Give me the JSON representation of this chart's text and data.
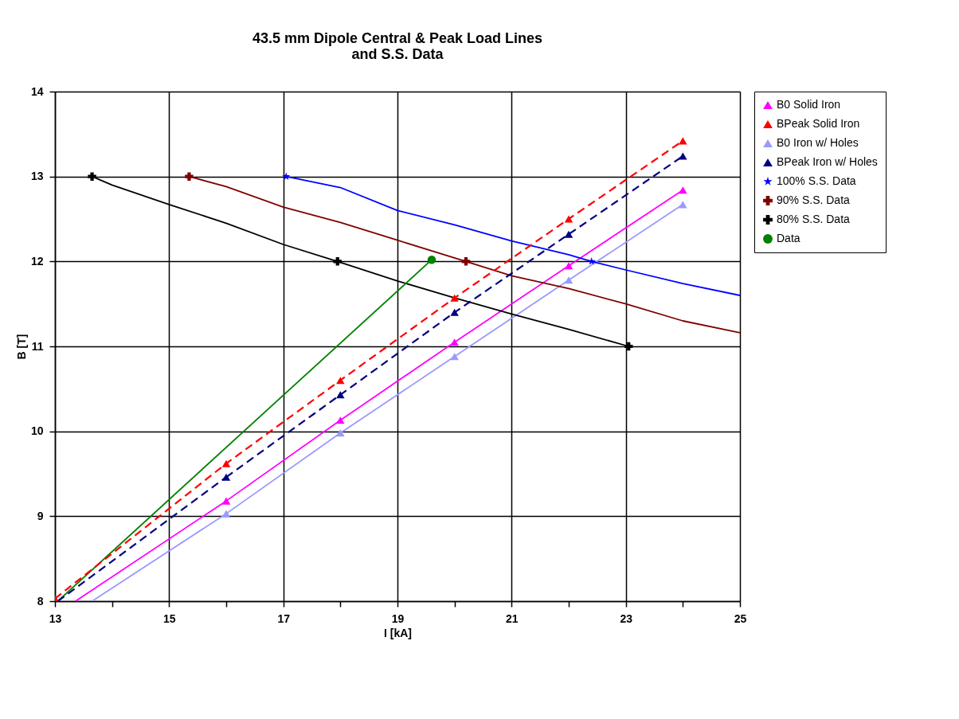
{
  "chart_data": {
    "type": "line",
    "title": "43.5 mm Dipole Central & Peak Load Lines\nand S.S. Data",
    "xlabel": "I [kA]",
    "ylabel": "B [T]",
    "xlim": [
      13,
      25
    ],
    "ylim": [
      8,
      14
    ],
    "xticks": [
      13,
      {
        "value": 14,
        "label": null
      },
      15,
      {
        "value": 16,
        "label": null
      },
      17,
      {
        "value": 18,
        "label": null
      },
      19,
      {
        "value": 20,
        "label": null
      },
      21,
      {
        "value": 22,
        "label": null
      },
      23,
      {
        "value": 24,
        "label": null
      },
      25
    ],
    "yticks": [
      8,
      9,
      10,
      11,
      12,
      13,
      14
    ],
    "grid": true,
    "legend": "right",
    "series": [
      {
        "name": "B0 Solid Iron",
        "color": "#ff00ff",
        "marker": "triangle",
        "line_style": "solid",
        "x": [
          16,
          18,
          20,
          22,
          24
        ],
        "values": [
          9.18,
          10.13,
          11.05,
          11.95,
          12.84
        ]
      },
      {
        "name": "BPeak Solid Iron",
        "color": "#ff0000",
        "marker": "triangle",
        "line_style": "dashed",
        "x": [
          13,
          16,
          18,
          20,
          22,
          24
        ],
        "values": [
          8.03,
          9.62,
          10.6,
          11.57,
          12.5,
          13.42
        ]
      },
      {
        "name": "B0 Iron w/ Holes",
        "color": "#9999ff",
        "marker": "triangle",
        "line_style": "solid",
        "x": [
          16,
          18,
          20,
          22,
          24
        ],
        "values": [
          9.03,
          9.98,
          10.88,
          11.78,
          12.67
        ]
      },
      {
        "name": "BPeak Iron w/ Holes",
        "color": "#000080",
        "marker": "triangle",
        "line_style": "dashed",
        "x": [
          16,
          18,
          20,
          22,
          24
        ],
        "values": [
          9.46,
          10.43,
          11.4,
          12.32,
          13.24
        ]
      },
      {
        "name": "100% S.S. Data",
        "type": "scatter",
        "color": "#0000ff",
        "marker": "star",
        "x": [
          17.05,
          22.4
        ],
        "values": [
          13.0,
          12.0
        ]
      },
      {
        "name": "90% S.S. Data",
        "type": "scatter",
        "color": "#800000",
        "marker": "cross",
        "x": [
          15.35,
          20.2
        ],
        "values": [
          13.0,
          12.0
        ]
      },
      {
        "name": "80% S.S. Data",
        "type": "scatter",
        "color": "#000000",
        "marker": "cross",
        "x": [
          13.65,
          17.95,
          23.05
        ],
        "values": [
          13.0,
          12.0,
          11.0
        ]
      },
      {
        "name": "Data",
        "type": "scatter",
        "color": "#008000",
        "marker": "circle",
        "x": [
          19.6
        ],
        "values": [
          12.02
        ]
      },
      {
        "color": "#ff00ff",
        "marker": "none",
        "line_style": "solid",
        "x": [
          13.36,
          16
        ],
        "values": [
          8.0,
          9.18
        ]
      },
      {
        "color": "#9999ff",
        "marker": "none",
        "line_style": "solid",
        "x": [
          13.65,
          16
        ],
        "values": [
          8.0,
          9.03
        ]
      },
      {
        "color": "#000080",
        "marker": "none",
        "line_style": "dashed",
        "x": [
          13.05,
          16
        ],
        "values": [
          8.0,
          9.46
        ]
      },
      {
        "color": "#0000ff",
        "marker": "none",
        "line_style": "solid",
        "x": [
          17.05,
          18,
          19,
          20,
          21,
          22,
          22.4,
          23,
          24,
          25
        ],
        "values": [
          13.0,
          12.87,
          12.6,
          12.43,
          12.24,
          12.08,
          12.0,
          11.9,
          11.74,
          11.6
        ]
      },
      {
        "color": "#800000",
        "marker": "none",
        "line_style": "solid",
        "x": [
          15.35,
          16,
          17,
          18,
          19,
          20.2,
          21,
          22,
          23,
          24,
          25
        ],
        "values": [
          13.0,
          12.88,
          12.64,
          12.46,
          12.25,
          12.0,
          11.83,
          11.68,
          11.5,
          11.3,
          11.16
        ]
      },
      {
        "color": "#000000",
        "marker": "none",
        "line_style": "solid",
        "x": [
          13.65,
          14,
          15,
          16,
          17,
          17.95,
          19,
          20,
          21,
          22,
          23.05
        ],
        "values": [
          13.0,
          12.9,
          12.67,
          12.45,
          12.2,
          12.0,
          11.77,
          11.57,
          11.38,
          11.2,
          11.0
        ]
      },
      {
        "color": "#008000",
        "marker": "none",
        "line_style": "solid",
        "x": [
          13.05,
          19.6
        ],
        "values": [
          8.0,
          12.02
        ]
      }
    ]
  }
}
